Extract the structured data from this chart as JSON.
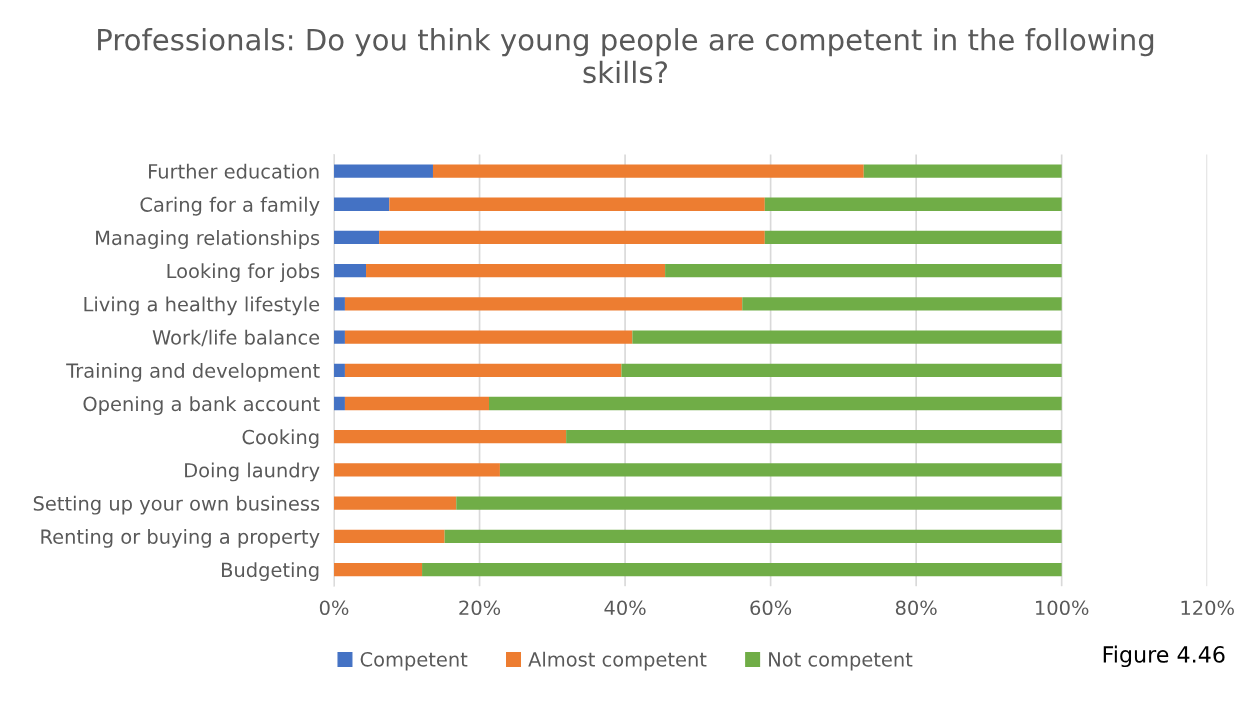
{
  "chart_data": {
    "type": "bar",
    "orientation": "horizontal",
    "stacked": true,
    "title": "Professionals: Do you think young people are competent in the following skills?",
    "categories": [
      "Further education",
      "Caring for a family",
      "Managing relationships",
      "Looking for jobs",
      "Living a healthy lifestyle",
      "Work/life balance",
      "Training and development",
      "Opening a bank account",
      "Cooking",
      "Doing laundry",
      "Setting up your own business",
      "Renting or buying a property",
      "Budgeting"
    ],
    "series": [
      {
        "name": "Competent",
        "color": "#4472c4",
        "values": [
          13.6,
          7.6,
          6.2,
          4.4,
          1.5,
          1.5,
          1.5,
          1.5,
          0,
          0,
          0,
          0,
          0
        ]
      },
      {
        "name": "Almost competent",
        "color": "#ed7d31",
        "values": [
          59.2,
          51.6,
          53.0,
          41.1,
          54.6,
          39.5,
          38.0,
          19.8,
          31.9,
          22.8,
          16.8,
          15.2,
          12.1
        ]
      },
      {
        "name": "Not competent",
        "color": "#70ad47",
        "values": [
          27.2,
          40.8,
          40.8,
          54.5,
          43.9,
          59.0,
          60.5,
          78.7,
          68.1,
          77.2,
          83.2,
          84.8,
          87.9
        ]
      }
    ],
    "xlim": [
      0,
      120
    ],
    "xticks": [
      {
        "value": 0,
        "label": "0%"
      },
      {
        "value": 20,
        "label": "20%"
      },
      {
        "value": 40,
        "label": "40%"
      },
      {
        "value": 60,
        "label": "60%"
      },
      {
        "value": 80,
        "label": "80%"
      },
      {
        "value": 100,
        "label": "100%"
      },
      {
        "value": 120,
        "label": "120%"
      }
    ],
    "grid": "x",
    "legend": "bottom",
    "annotations": [
      "Figure 4.46"
    ]
  }
}
